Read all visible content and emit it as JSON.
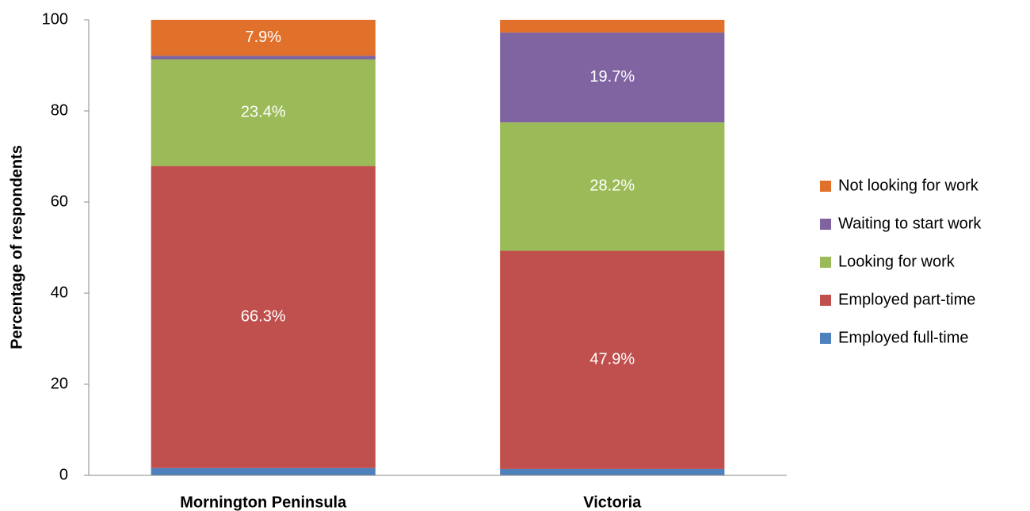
{
  "chart_data": {
    "type": "stacked_bar",
    "y_label": "Percentage of respondents",
    "categories": [
      "Mornington Peninsula",
      "Victoria"
    ],
    "series": [
      {
        "name": "Employed full-time",
        "color": "#4f81bd",
        "values": [
          1.6,
          1.4
        ],
        "value_labels": [
          null,
          null
        ]
      },
      {
        "name": "Employed part-time",
        "color": "#c0504d",
        "values": [
          66.3,
          47.9
        ],
        "value_labels": [
          "66.3%",
          "47.9%"
        ]
      },
      {
        "name": "Looking for work",
        "color": "#9bbb59",
        "values": [
          23.4,
          28.2
        ],
        "value_labels": [
          "23.4%",
          "28.2%"
        ]
      },
      {
        "name": "Waiting to start work",
        "color": "#8064a2",
        "values": [
          0.8,
          19.7
        ],
        "value_labels": [
          null,
          "19.7%"
        ]
      },
      {
        "name": "Not looking for work",
        "color": "#e0702a",
        "values": [
          7.9,
          2.8
        ],
        "value_labels": [
          "7.9%",
          null
        ]
      }
    ],
    "ylim": [
      0,
      100
    ],
    "yticks": [
      0,
      20,
      40,
      60,
      80,
      100
    ],
    "grid": false,
    "legend": "right"
  }
}
